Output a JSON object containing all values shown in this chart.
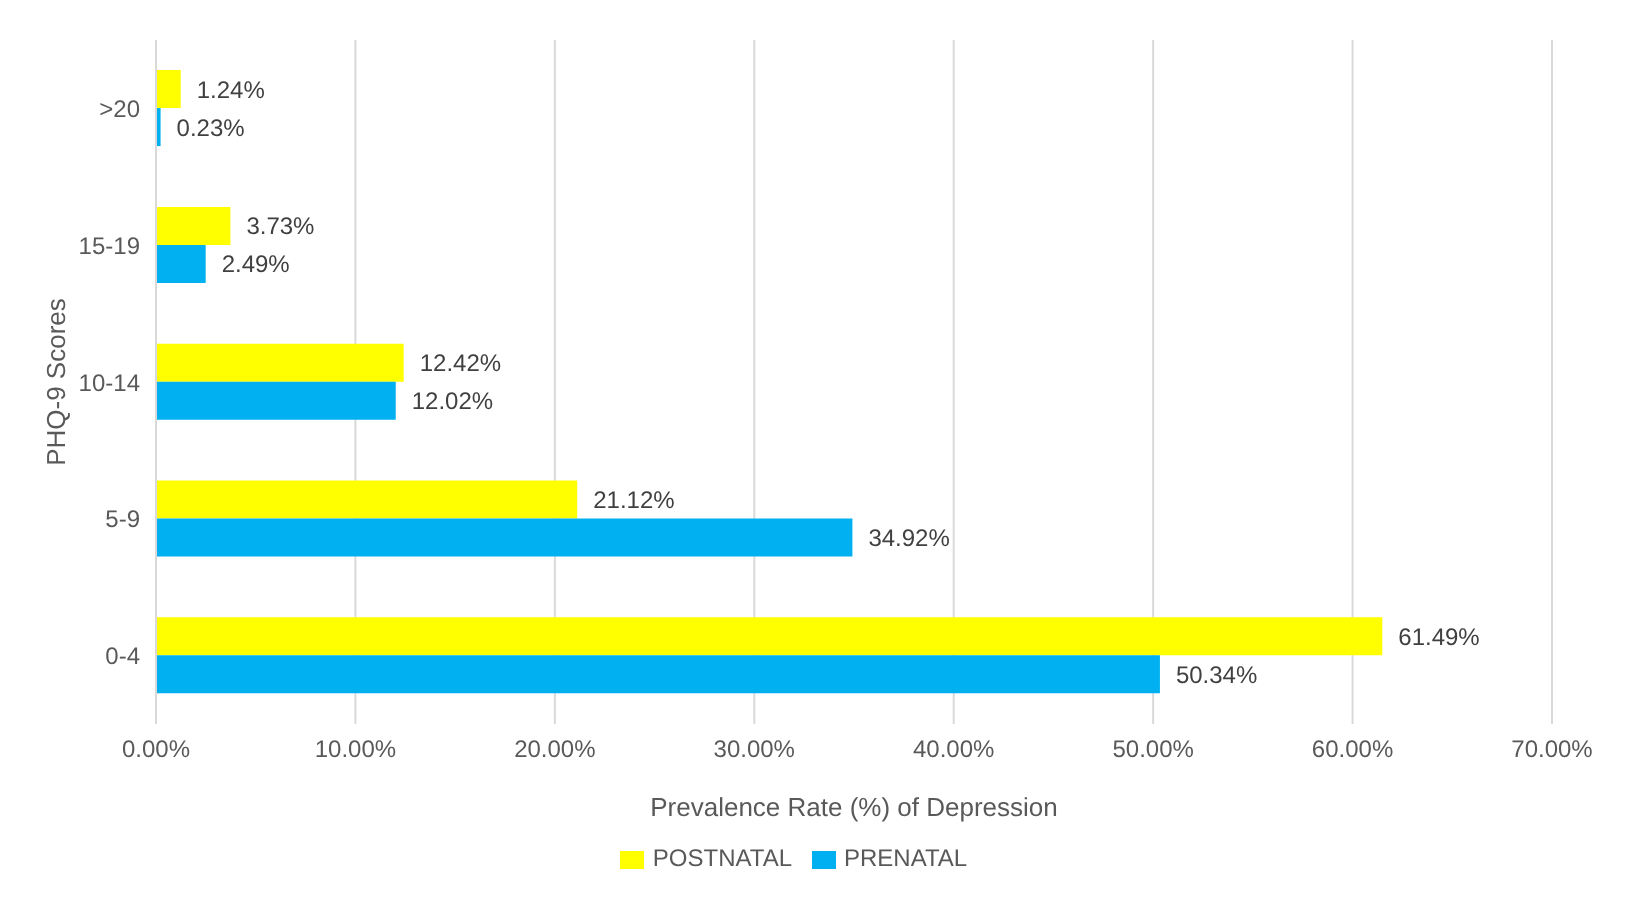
{
  "chart_data": {
    "type": "bar",
    "orientation": "horizontal",
    "xlabel": "Prevalence Rate (%) of Depression",
    "ylabel": "PHQ-9 Scores",
    "categories": [
      ">20",
      "15-19",
      "10-14",
      "5-9",
      "0-4"
    ],
    "series": [
      {
        "name": "POSTNATAL",
        "color": "#ffff00",
        "values": [
          1.24,
          3.73,
          12.42,
          21.12,
          61.49
        ],
        "value_labels": [
          "1.24%",
          "3.73%",
          "12.42%",
          "21.12%",
          "61.49%"
        ]
      },
      {
        "name": "PRENATAL",
        "color": "#00b0f0",
        "values": [
          0.23,
          2.49,
          12.02,
          34.92,
          50.34
        ],
        "value_labels": [
          "0.23%",
          "2.49%",
          "12.02%",
          "34.92%",
          "50.34%"
        ]
      }
    ],
    "xlim": [
      0,
      70
    ],
    "xticks": [
      {
        "value": 0,
        "label": "0.00%"
      },
      {
        "value": 10,
        "label": "10.00%"
      },
      {
        "value": 20,
        "label": "20.00%"
      },
      {
        "value": 30,
        "label": "30.00%"
      },
      {
        "value": 40,
        "label": "40.00%"
      },
      {
        "value": 50,
        "label": "50.00%"
      },
      {
        "value": 60,
        "label": "60.00%"
      },
      {
        "value": 70,
        "label": "70.00%"
      }
    ],
    "grid": "x",
    "legend": "bottom"
  }
}
